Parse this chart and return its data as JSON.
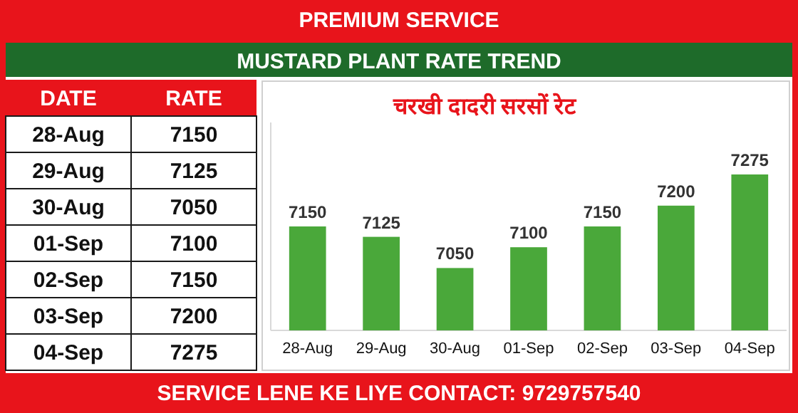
{
  "chart_data": {
    "type": "bar",
    "title": "MUSTARD PLANT RATE TREND",
    "subtitle": "चरखी दादरी सरसों रेट",
    "categories": [
      "28-Aug",
      "29-Aug",
      "30-Aug",
      "01-Sep",
      "02-Sep",
      "03-Sep",
      "04-Sep"
    ],
    "values": [
      7150,
      7125,
      7050,
      7100,
      7150,
      7200,
      7275
    ],
    "value_labels": [
      "7150",
      "7125",
      "7050",
      "7100",
      "7150",
      "7200",
      "7275"
    ],
    "color": "#4aa83a",
    "ylim": [
      6900,
      7400
    ],
    "annotations": [
      "PREMIUM SERVICE",
      "DATE",
      "RATE",
      "SERVICE LENE KE LIYE CONTACT: 9729757540"
    ]
  }
}
